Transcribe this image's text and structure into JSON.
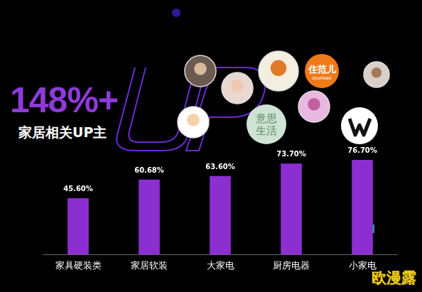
{
  "chart_data": {
    "type": "bar",
    "categories": [
      "家具硬装类",
      "家居软装",
      "大家电",
      "厨房电器",
      "小家电"
    ],
    "values": [
      45.6,
      60.68,
      63.6,
      73.7,
      76.7
    ],
    "value_labels": [
      "45.60%",
      "60.68%",
      "63.60%",
      "73.70%",
      "76.70%"
    ],
    "color": "#8b2fd0",
    "ylim": [
      0,
      100
    ],
    "grid": false,
    "data_labels": true,
    "tick_labels": "x",
    "annotations": {
      "headline": "148%+",
      "subtitle": "家居相关UP主",
      "logo_1": "住范儿",
      "logo_1_sub": "ZHUFANER",
      "logo_2": [
        "意思",
        "生活"
      ],
      "watermark": "欧漫露"
    }
  }
}
